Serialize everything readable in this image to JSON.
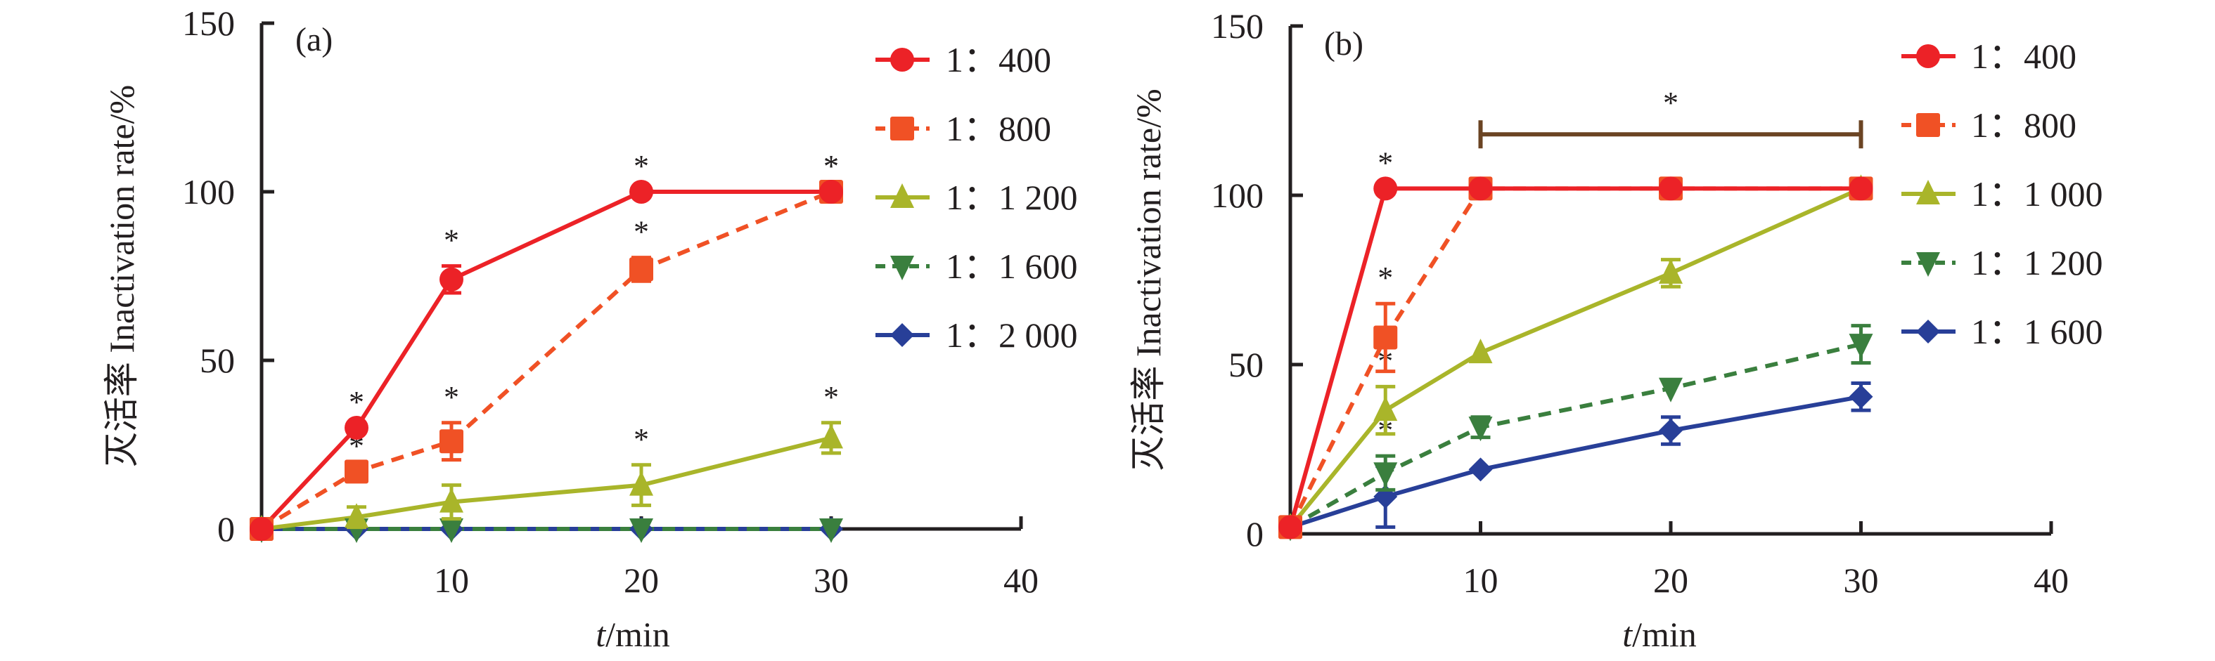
{
  "chart_data": [
    {
      "type": "line",
      "panel_label": "(a)",
      "title": "",
      "xlabel_italic": "t",
      "xlabel_rest": "/min",
      "ylabel": "灭活率 Inactivation rate/%",
      "xlim": [
        0,
        40
      ],
      "ylim": [
        0,
        150
      ],
      "xticks": [
        10,
        20,
        30,
        40
      ],
      "yticks": [
        0,
        50,
        100,
        150
      ],
      "grid": false,
      "legend_position": "top-right",
      "x": [
        0,
        5,
        10,
        20,
        30
      ],
      "series": [
        {
          "name": "1：400",
          "color": "#ec2227",
          "dashed": false,
          "marker": "circle",
          "values": [
            0,
            30,
            74,
            100,
            100
          ],
          "errors": [
            0,
            0,
            4,
            0,
            0
          ],
          "significant": [
            false,
            true,
            true,
            true,
            true
          ]
        },
        {
          "name": "1：800",
          "color": "#f05125",
          "dashed": true,
          "marker": "square",
          "values": [
            0,
            17,
            26,
            77,
            100
          ],
          "errors": [
            0,
            0,
            5.5,
            3.5,
            0
          ],
          "significant": [
            false,
            true,
            true,
            true,
            true
          ]
        },
        {
          "name": "1：1 200",
          "color": "#a9b52a",
          "dashed": false,
          "marker": "triangle-up",
          "values": [
            0,
            3.5,
            8,
            13,
            27
          ],
          "errors": [
            0,
            3,
            5,
            6,
            4.5
          ],
          "significant": [
            false,
            false,
            false,
            true,
            true
          ]
        },
        {
          "name": "1：1 600",
          "color": "#3a7f3e",
          "dashed": true,
          "marker": "triangle-down",
          "values": [
            0,
            0,
            0,
            0,
            0
          ],
          "errors": [
            0,
            0,
            0,
            0,
            0
          ],
          "significant": [
            false,
            false,
            false,
            false,
            false
          ]
        },
        {
          "name": "1：2 000",
          "color": "#283f98",
          "dashed": false,
          "marker": "diamond",
          "values": [
            0,
            0,
            0,
            0,
            0
          ],
          "errors": [
            0,
            0,
            0,
            0,
            0
          ],
          "significant": [
            false,
            false,
            false,
            false,
            false
          ]
        }
      ],
      "annotations": [],
      "star_symbol": "*"
    },
    {
      "type": "line",
      "panel_label": "(b)",
      "title": "",
      "xlabel_italic": "t",
      "xlabel_rest": "/min",
      "ylabel": "灭活率 Inactivation rate/%",
      "xlim": [
        0,
        40
      ],
      "ylim": [
        0,
        150
      ],
      "xticks": [
        10,
        20,
        30,
        40
      ],
      "yticks": [
        0,
        50,
        100,
        150
      ],
      "grid": false,
      "legend_position": "top-right",
      "x": [
        0,
        5,
        10,
        20,
        30
      ],
      "series": [
        {
          "name": "1：400",
          "color": "#ec2227",
          "dashed": false,
          "marker": "circle",
          "values": [
            2,
            102,
            102,
            102,
            102
          ],
          "errors": [
            0,
            0,
            0,
            0,
            0
          ],
          "significant": [
            false,
            true,
            false,
            false,
            false
          ]
        },
        {
          "name": "1：800",
          "color": "#f05125",
          "dashed": true,
          "marker": "square",
          "values": [
            2,
            58,
            102,
            102,
            102
          ],
          "errors": [
            0,
            10,
            0,
            0,
            0
          ],
          "significant": [
            false,
            true,
            false,
            false,
            false
          ]
        },
        {
          "name": "1：1 000",
          "color": "#a9b52a",
          "dashed": false,
          "marker": "triangle-up",
          "values": [
            2,
            36.5,
            53.5,
            77,
            102
          ],
          "errors": [
            0,
            7,
            0,
            4,
            0
          ],
          "significant": [
            false,
            true,
            false,
            false,
            false
          ]
        },
        {
          "name": "1：1 200",
          "color": "#3a7f3e",
          "dashed": true,
          "marker": "triangle-down",
          "values": [
            2,
            18,
            31.5,
            43,
            56
          ],
          "errors": [
            0,
            5,
            3,
            0,
            5.5
          ],
          "significant": [
            false,
            true,
            false,
            false,
            false
          ]
        },
        {
          "name": "1：1 600",
          "color": "#283f98",
          "dashed": false,
          "marker": "diamond",
          "values": [
            2,
            11,
            19,
            30.5,
            40.5
          ],
          "errors": [
            0,
            9,
            0,
            4,
            4
          ],
          "significant": [
            false,
            false,
            false,
            false,
            false
          ]
        }
      ],
      "annotations": [
        {
          "type": "significance-bracket",
          "x_from": 10,
          "x_to": 30,
          "y": 118,
          "label": "*",
          "color": "#6b4423"
        }
      ],
      "star_symbol": "*"
    }
  ]
}
